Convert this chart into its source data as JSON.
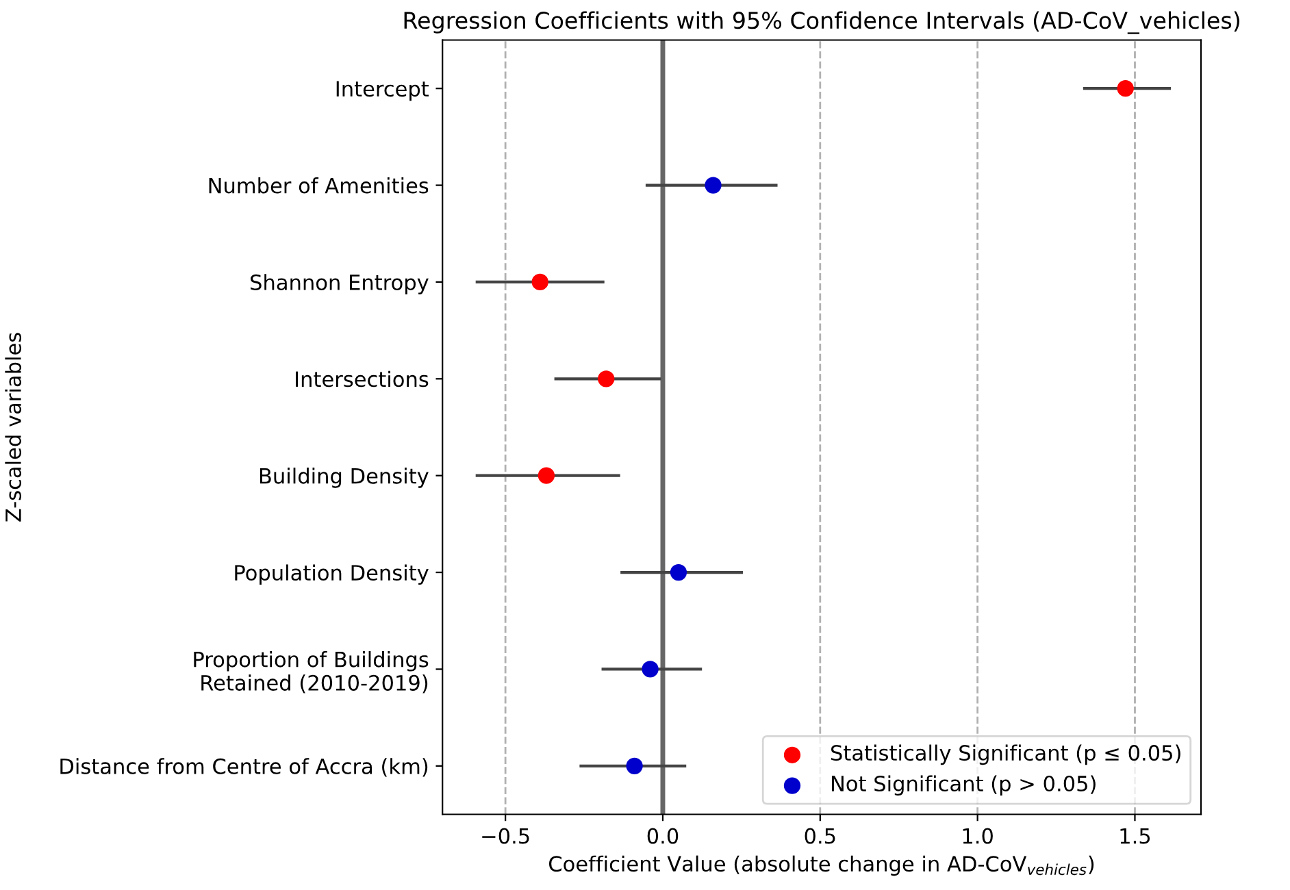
{
  "chart_data": {
    "type": "scatter",
    "orientation": "horizontal",
    "title": "Regression Coefficients with 95% Confidence Intervals (AD-CoV_vehicles)",
    "xlabel": "Coefficient Value (absolute change in AD-CoV$_{vehicles}$)",
    "ylabel": "Z-scaled variables",
    "categories": [
      "Intercept",
      "Number of Amenities",
      "Shannon Entropy",
      "Intersections",
      "Building Density",
      "Population Density",
      "Proportion of Buildings\nRetained (2010-2019)",
      "Distance from Centre of Accra (km)"
    ],
    "series": [
      {
        "name": "Statistically Significant (p ≤ 0.05)",
        "color": "#ff0000",
        "values": [
          1.47,
          null,
          -0.39,
          -0.18,
          -0.37,
          null,
          null,
          null
        ],
        "errors": [
          [
            1.34,
            1.61
          ],
          null,
          [
            -0.59,
            -0.19
          ],
          [
            -0.34,
            -0.01
          ],
          [
            -0.59,
            -0.14
          ],
          null,
          null,
          null
        ]
      },
      {
        "name": "Not Significant (p > 0.05)",
        "color": "#0000cc",
        "values": [
          null,
          0.16,
          null,
          null,
          null,
          0.05,
          -0.04,
          -0.09
        ],
        "errors": [
          null,
          [
            -0.05,
            0.36
          ],
          null,
          null,
          null,
          [
            -0.13,
            0.25
          ],
          [
            -0.19,
            0.12
          ],
          [
            -0.26,
            0.07
          ]
        ]
      }
    ],
    "xlim": [
      -0.7,
      1.71
    ],
    "xticks": [
      {
        "value": -0.5,
        "label": "−0.5"
      },
      {
        "value": 0,
        "label": "0.0"
      },
      0.5,
      {
        "value": 1,
        "label": "1.0"
      },
      1.5
    ],
    "ref_lines": [
      {
        "axis": "x",
        "value": 0,
        "color": "#666666"
      }
    ],
    "grid": "x",
    "legend": "bottom right",
    "marker": "circle"
  }
}
